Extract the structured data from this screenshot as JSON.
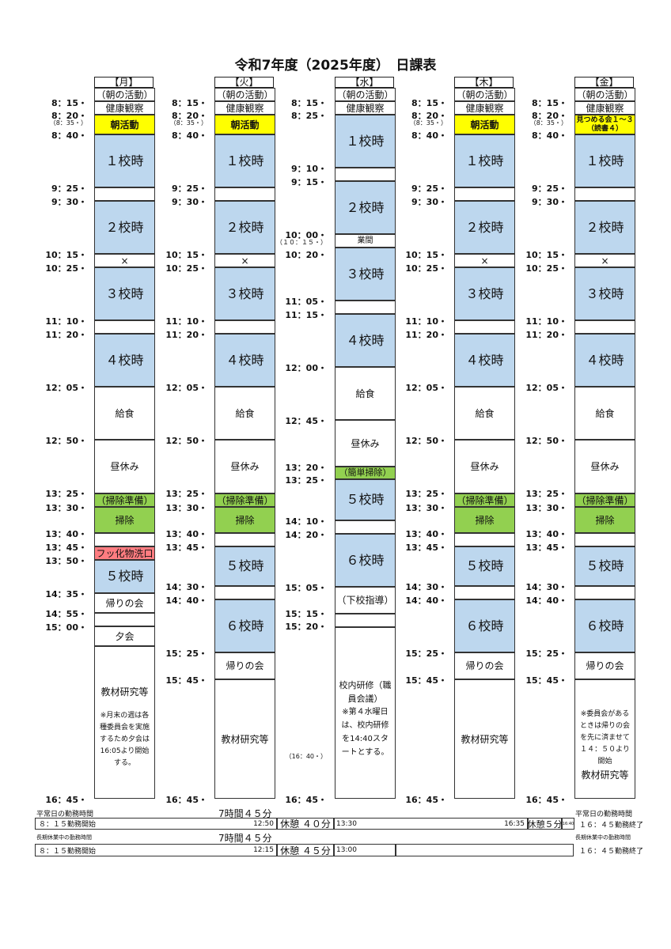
{
  "title": "令和7年度（2025年度）　日課表",
  "days": [
    "【月】",
    "【火】",
    "【水】",
    "【木】",
    "【金】"
  ],
  "labels": {
    "morning": "（朝の活動）",
    "health": "健康観察",
    "asakatsudo": "朝活動",
    "mitsumeru1": "見つめる会１～３",
    "mitsumeru2": "（読書４）",
    "p1": "１校時",
    "p2": "２校時",
    "p3": "３校時",
    "p4": "４校時",
    "p5": "５校時",
    "p6": "６校時",
    "cross": "×",
    "gyokan": "業間",
    "kyushoku": "給食",
    "hiruyasumi": "昼休み",
    "soji_prep": "（掃除準備）",
    "soji": "掃除",
    "kantan_soji": "（簡単掃除）",
    "fukka": "フッ化物洗口",
    "kaeri": "帰りの会",
    "yukai": "夕会",
    "gekou": "（下校指導）",
    "kyozai": "教材研究等",
    "mon_note": "※月末の週は各種委員会を実施するため夕会は16:05より開始する。",
    "wed_kennai": "校内研修（職員会議）",
    "wed_note": "※第４水曜日は、校内研修を14:40スタートとする。",
    "fri_note": "※委員会があるときは帰りの会を先に済ませて　１４：５０より開始"
  },
  "times": {
    "mon": [
      "8：15・",
      "8：20・",
      "（8：35・）",
      "8：40・",
      "9：25・",
      "9：30・",
      "10：15・",
      "10：25・",
      "11：10・",
      "11：20・",
      "12：05・",
      "12：50・",
      "13：25・",
      "13：30・",
      "13：40・",
      "13：45・",
      "13：50・",
      "14：35・",
      "14：55・",
      "15：00・",
      "16：45・"
    ],
    "tue": [
      "8：15・",
      "8：20・",
      "（8：35・）",
      "8：40・",
      "9：25・",
      "9：30・",
      "10：15・",
      "10：25・",
      "11：10・",
      "11：20・",
      "12：05・",
      "12：50・",
      "13：25・",
      "13：30・",
      "13：40・",
      "13：45・",
      "14：30・",
      "14：40・",
      "15：25・",
      "15：45・",
      "16：45・"
    ],
    "wed": [
      "8：15・",
      "8：25・",
      "9：10・",
      "9：15・",
      "10：00・",
      "（１０：１５・）",
      "10：20・",
      "11：05・",
      "11：15・",
      "12：00・",
      "12：45・",
      "13：20・",
      "13：25・",
      "14：10・",
      "14：20・",
      "15：05・",
      "15：15・",
      "15：20・",
      "（16：40・）",
      "16：45・"
    ],
    "thu": [
      "8：15・",
      "8：20・",
      "（8：35・）",
      "8：40・",
      "9：25・",
      "9：30・",
      "10：15・",
      "10：25・",
      "11：10・",
      "11：20・",
      "12：05・",
      "12：50・",
      "13：25・",
      "13：30・",
      "13：40・",
      "13：45・",
      "14：30・",
      "14：40・",
      "15：25・",
      "15：45・",
      "16：45・"
    ],
    "fri": [
      "8：15・",
      "8：20・",
      "（8：35・）",
      "8：40・",
      "9：25・",
      "9：30・",
      "10：15・",
      "10：25・",
      "11：10・",
      "11：20・",
      "12：05・",
      "12：50・",
      "13：25・",
      "13：30・",
      "13：40・",
      "13：45・",
      "14：30・",
      "14：40・",
      "15：25・",
      "15：45・",
      "16：45・"
    ]
  },
  "footer": {
    "normal_label": "平常日の勤務時間",
    "normal_total": "7時間４５分",
    "normal_end_label": "平常日の勤務時間",
    "start": "８：１５勤務開始",
    "normal_break_start": "12:50",
    "normal_break": "休憩 ４０分",
    "normal_break_end": "13:30",
    "normal_break2_start": "16:35",
    "normal_break2": "休憩５分",
    "normal_break2_end": "16:40",
    "end": "１６：４５勤務終了",
    "long_label": "長期休業中の勤務時間",
    "long_total": "7時間４５分",
    "long_end_label": "長期休業中の勤務時間",
    "long_break_start": "12:15",
    "long_break": "休憩 ４５分",
    "long_break_end": "13:00"
  }
}
